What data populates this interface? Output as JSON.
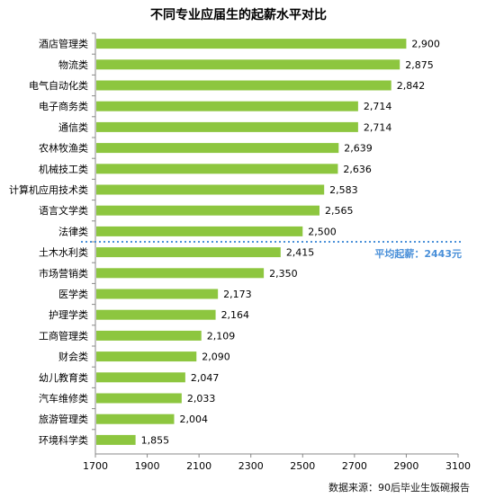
{
  "chart_data": {
    "type": "bar",
    "orientation": "horizontal",
    "title": "不同专业应届生的起薪水平对比",
    "categories": [
      "酒店管理类",
      "物流类",
      "电气自动化类",
      "电子商务类",
      "通信类",
      "农林牧渔类",
      "机械技工类",
      "计算机应用技术类",
      "语言文学类",
      "法律类",
      "土木水利类",
      "市场营销类",
      "医学类",
      "护理学类",
      "工商管理类",
      "财会类",
      "幼儿教育类",
      "汽车维修类",
      "旅游管理类",
      "环境科学类"
    ],
    "values": [
      2900,
      2875,
      2842,
      2714,
      2714,
      2639,
      2636,
      2583,
      2565,
      2500,
      2415,
      2350,
      2173,
      2164,
      2109,
      2090,
      2047,
      2033,
      2004,
      1855
    ],
    "value_labels": [
      "2,900",
      "2,875",
      "2,842",
      "2,714",
      "2,714",
      "2,639",
      "2,636",
      "2,583",
      "2,565",
      "2,500",
      "2,415",
      "2,350",
      "2,173",
      "2,164",
      "2,109",
      "2,090",
      "2,047",
      "2,033",
      "2,004",
      "1,855"
    ],
    "xlim": [
      1700,
      3100
    ],
    "xticks": [
      "1700",
      "1900",
      "2100",
      "2300",
      "2500",
      "2700",
      "2900",
      "3100"
    ],
    "grid": false,
    "bar_color": "#8DC63F",
    "reference_line": {
      "label": "平均起薪：2443元",
      "position_after_category": "法律类",
      "color": "#4A90D9"
    }
  },
  "source": "数据来源：90后毕业生饭碗报告"
}
